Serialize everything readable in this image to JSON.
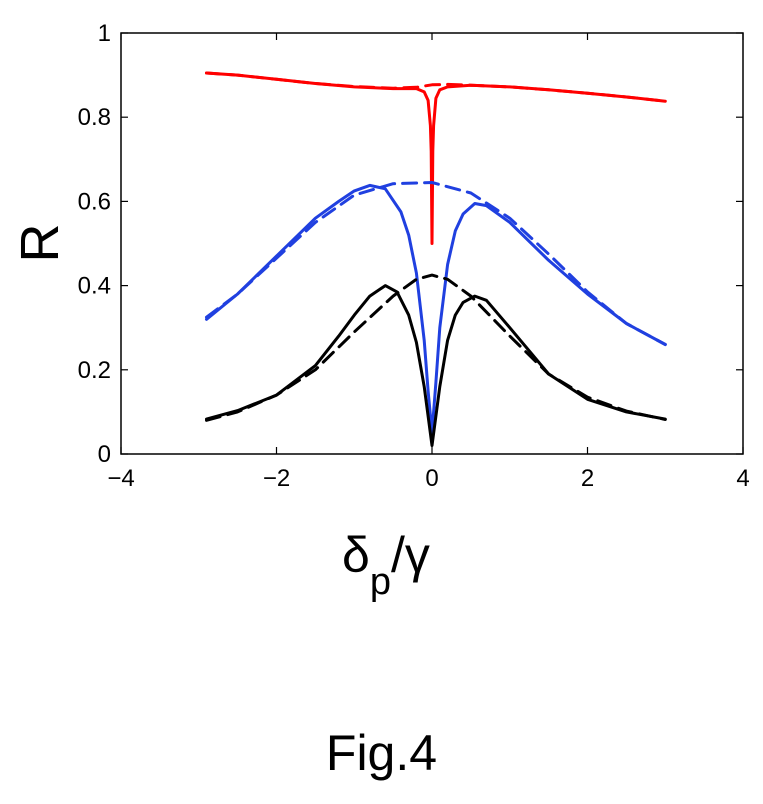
{
  "chart_data": {
    "type": "line",
    "ylabel": "R",
    "xlabel": {
      "main": "δ",
      "sub": "p",
      "tail": "/γ"
    },
    "xlim": [
      -4,
      4
    ],
    "ylim": [
      0,
      1
    ],
    "xticks": [
      "−4",
      "−2",
      "0",
      "2",
      "4"
    ],
    "xtick_values": [
      -4,
      -2,
      0,
      2,
      4
    ],
    "yticks": [
      "0",
      "0.2",
      "0.4",
      "0.6",
      "0.8",
      "1"
    ],
    "ytick_values": [
      0,
      0.2,
      0.4,
      0.6,
      0.8,
      1
    ],
    "grid": false,
    "legend": "none",
    "series": [
      {
        "color": "#ff0000",
        "style": "solid",
        "x": [
          -2.9,
          -2.5,
          -2.0,
          -1.5,
          -1.0,
          -0.5,
          -0.2,
          -0.1,
          -0.05,
          -0.02,
          -0.01,
          0,
          0.01,
          0.02,
          0.05,
          0.1,
          0.2,
          0.5,
          1.0,
          1.5,
          2.0,
          2.5,
          3.0
        ],
        "y": [
          0.905,
          0.9,
          0.89,
          0.88,
          0.872,
          0.868,
          0.868,
          0.86,
          0.84,
          0.78,
          0.72,
          0.5,
          0.72,
          0.78,
          0.845,
          0.865,
          0.872,
          0.876,
          0.872,
          0.865,
          0.857,
          0.848,
          0.838
        ]
      },
      {
        "color": "#ff0000",
        "style": "dashed",
        "x": [
          -2.9,
          -2.5,
          -2.0,
          -1.5,
          -1.0,
          -0.5,
          -0.2,
          0,
          0.2,
          0.5,
          1.0,
          1.5,
          2.0,
          2.5,
          3.0
        ],
        "y": [
          0.905,
          0.9,
          0.89,
          0.88,
          0.873,
          0.869,
          0.871,
          0.877,
          0.878,
          0.876,
          0.872,
          0.865,
          0.857,
          0.848,
          0.838
        ]
      },
      {
        "color": "#2040e0",
        "style": "solid",
        "x": [
          -2.9,
          -2.5,
          -2.0,
          -1.5,
          -1.2,
          -1.0,
          -0.8,
          -0.6,
          -0.4,
          -0.3,
          -0.2,
          -0.1,
          -0.05,
          0,
          0.05,
          0.1,
          0.2,
          0.3,
          0.4,
          0.55,
          0.7,
          1.0,
          1.5,
          2.0,
          2.5,
          3.0
        ],
        "y": [
          0.32,
          0.38,
          0.47,
          0.56,
          0.6,
          0.625,
          0.638,
          0.63,
          0.575,
          0.52,
          0.43,
          0.27,
          0.15,
          0.05,
          0.17,
          0.3,
          0.45,
          0.53,
          0.57,
          0.595,
          0.59,
          0.55,
          0.46,
          0.38,
          0.31,
          0.26
        ]
      },
      {
        "color": "#2040e0",
        "style": "dashed",
        "x": [
          -2.9,
          -2.5,
          -2.0,
          -1.5,
          -1.0,
          -0.5,
          0,
          0.5,
          1.0,
          1.5,
          2.0,
          2.5,
          3.0
        ],
        "y": [
          0.325,
          0.38,
          0.465,
          0.55,
          0.615,
          0.642,
          0.645,
          0.62,
          0.56,
          0.475,
          0.385,
          0.31,
          0.26
        ]
      },
      {
        "color": "#000000",
        "style": "solid",
        "x": [
          -2.9,
          -2.5,
          -2.0,
          -1.5,
          -1.2,
          -1.0,
          -0.8,
          -0.6,
          -0.45,
          -0.3,
          -0.2,
          -0.1,
          -0.05,
          0,
          0.05,
          0.1,
          0.2,
          0.3,
          0.4,
          0.55,
          0.7,
          1.0,
          1.5,
          2.0,
          2.5,
          3.0
        ],
        "y": [
          0.083,
          0.103,
          0.14,
          0.21,
          0.28,
          0.33,
          0.375,
          0.4,
          0.385,
          0.33,
          0.265,
          0.16,
          0.09,
          0.02,
          0.09,
          0.16,
          0.27,
          0.33,
          0.36,
          0.375,
          0.365,
          0.3,
          0.19,
          0.13,
          0.1,
          0.083
        ]
      },
      {
        "color": "#000000",
        "style": "dashed",
        "x": [
          -2.9,
          -2.5,
          -2.0,
          -1.5,
          -1.0,
          -0.5,
          -0.2,
          0,
          0.2,
          0.5,
          1.0,
          1.5,
          2.0,
          2.5,
          3.0
        ],
        "y": [
          0.08,
          0.1,
          0.14,
          0.2,
          0.29,
          0.375,
          0.415,
          0.425,
          0.415,
          0.375,
          0.28,
          0.19,
          0.135,
          0.102,
          0.082
        ]
      }
    ]
  },
  "caption": "Fig.4"
}
